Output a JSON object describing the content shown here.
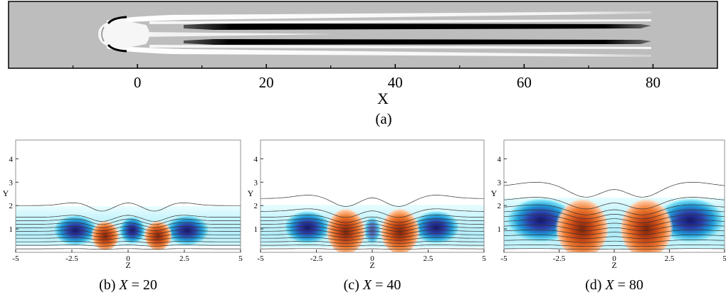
{
  "panels": {
    "a": {
      "caption": "(a)",
      "xlabel": "X",
      "xticks": [
        "0",
        "20",
        "40",
        "60",
        "80"
      ],
      "xtick_values": [
        0,
        20,
        40,
        60,
        80
      ],
      "xlim": [
        -20,
        90
      ],
      "minor_tick_values": [
        -10,
        10,
        30,
        50,
        70
      ]
    },
    "b": {
      "caption_prefix": "(b) ",
      "caption_var": "X",
      "caption_rest": " = 20",
      "x_station": 20,
      "xlabel": "Z",
      "ylabel": "Y"
    },
    "c": {
      "caption_prefix": "(c) ",
      "caption_var": "X",
      "caption_rest": " = 40",
      "x_station": 40,
      "xlabel": "Z",
      "ylabel": "Y"
    },
    "d": {
      "caption_prefix": "(d) ",
      "caption_var": "X",
      "caption_rest": " = 80",
      "x_station": 80,
      "xlabel": "Z",
      "ylabel": "Y"
    }
  },
  "cross_section_axes": {
    "xticks": [
      "-5",
      "-2.5",
      "0",
      "2.5",
      "5"
    ],
    "xtick_values": [
      -5,
      -2.5,
      0,
      2.5,
      5
    ],
    "yticks": [
      "1",
      "2",
      "3",
      "4"
    ],
    "ytick_values": [
      1,
      2,
      3,
      4
    ],
    "xlim": [
      -5,
      5
    ],
    "ylim": [
      0,
      4.8
    ]
  },
  "colors": {
    "background_plan": "#bdbdbd",
    "streak_dark": "#000000",
    "streak_light": "#ffffff",
    "negative_core": "#1a1a7a",
    "negative_mid": "#1f8fd6",
    "negative_edge": "#b8f4ff",
    "positive_core": "#8a2a0c",
    "positive_mid": "#e0541a",
    "positive_edge": "#ffd0b0",
    "contour_line": "#333333"
  },
  "chart_data": [
    {
      "type": "heatmap",
      "title": "",
      "xlabel": "X",
      "ylabel": "",
      "xlim": [
        -20,
        90
      ],
      "x_ticks": [
        0,
        20,
        40,
        60,
        80
      ],
      "legend": "none",
      "grid": false,
      "features": [
        {
          "kind": "high-speed streak (light)",
          "x_start": 0,
          "x_end": 80
        },
        {
          "kind": "low-speed streak (dark)",
          "x_start": 10,
          "x_end": 80
        },
        {
          "kind": "central light streak",
          "x_start": 0,
          "x_end": 33
        }
      ]
    },
    {
      "type": "heatmap",
      "title": "",
      "xlabel": "Z",
      "ylabel": "Y",
      "xlim": [
        -5,
        5
      ],
      "ylim": [
        0,
        4.8
      ],
      "x_station": 20,
      "boundary_layer_edge": 2.0,
      "structures": [
        {
          "sign": "negative",
          "z": -2.4,
          "y": 1.0
        },
        {
          "sign": "positive",
          "z": -1.2,
          "y": 0.4
        },
        {
          "sign": "negative",
          "z": 0.0,
          "y": 1.0
        },
        {
          "sign": "positive",
          "z": 1.2,
          "y": 0.4
        },
        {
          "sign": "negative",
          "z": 2.4,
          "y": 1.0
        }
      ]
    },
    {
      "type": "heatmap",
      "title": "",
      "xlabel": "Z",
      "ylabel": "Y",
      "xlim": [
        -5,
        5
      ],
      "ylim": [
        0,
        4.8
      ],
      "x_station": 40,
      "boundary_layer_edge": 2.3,
      "structures": [
        {
          "sign": "negative",
          "z": -2.8,
          "y": 1.0
        },
        {
          "sign": "positive",
          "z": -1.2,
          "y": 0.6
        },
        {
          "sign": "negative",
          "z": 0.0,
          "y": 1.0
        },
        {
          "sign": "positive",
          "z": 1.2,
          "y": 0.6
        },
        {
          "sign": "negative",
          "z": 2.8,
          "y": 1.0
        }
      ]
    },
    {
      "type": "heatmap",
      "title": "",
      "xlabel": "Z",
      "ylabel": "Y",
      "xlim": [
        -5,
        5
      ],
      "ylim": [
        0,
        4.8
      ],
      "x_station": 80,
      "boundary_layer_edge": 2.8,
      "structures": [
        {
          "sign": "negative",
          "z": -3.3,
          "y": 1.2
        },
        {
          "sign": "positive",
          "z": -1.4,
          "y": 1.0
        },
        {
          "sign": "positive",
          "z": 1.4,
          "y": 1.0
        },
        {
          "sign": "negative",
          "z": 3.3,
          "y": 1.2
        }
      ]
    }
  ]
}
